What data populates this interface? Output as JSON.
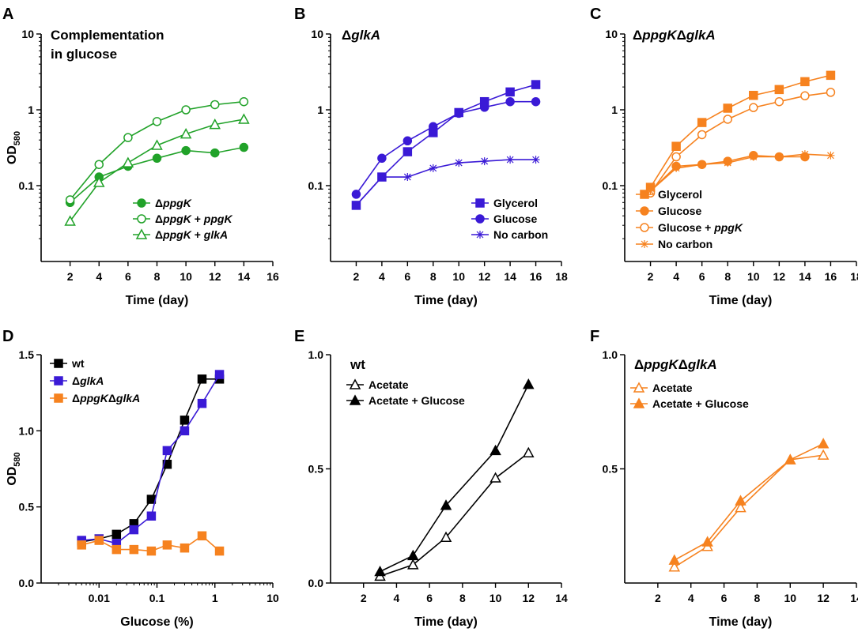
{
  "chart_data": [
    {
      "panel": "A",
      "type": "line",
      "title_lines": [
        "Complementation",
        " in glucose"
      ],
      "xlabel": "Time (day)",
      "ylabel": "OD",
      "ylabel_sub": "580",
      "yscale": "log",
      "xlim": [
        0,
        16
      ],
      "ylim": [
        0.01,
        10
      ],
      "xticks": [
        2,
        4,
        6,
        8,
        10,
        12,
        14,
        16
      ],
      "yticks": [
        0.1,
        1,
        10
      ],
      "ytick_labels": [
        "0.1",
        "1",
        "10"
      ],
      "legend_position": "bottom-right",
      "series": [
        {
          "name": [
            {
              "t": "Δ"
            },
            {
              "t": "ppgK",
              "i": true
            }
          ],
          "color": "#21a229",
          "marker": "circle",
          "filled": true,
          "x": [
            2,
            4,
            6,
            8,
            10,
            12,
            14
          ],
          "y": [
            0.06,
            0.13,
            0.18,
            0.23,
            0.29,
            0.27,
            0.32
          ]
        },
        {
          "name": [
            {
              "t": "Δ"
            },
            {
              "t": "ppgK",
              "i": true
            },
            {
              "t": " + "
            },
            {
              "t": "ppgK",
              "i": true
            }
          ],
          "color": "#21a229",
          "marker": "circle",
          "filled": false,
          "x": [
            2,
            4,
            6,
            8,
            10,
            12,
            14
          ],
          "y": [
            0.065,
            0.19,
            0.43,
            0.7,
            1.0,
            1.17,
            1.28
          ]
        },
        {
          "name": [
            {
              "t": "Δ"
            },
            {
              "t": "ppgK",
              "i": true
            },
            {
              "t": " + "
            },
            {
              "t": "glkA",
              "i": true
            }
          ],
          "color": "#21a229",
          "marker": "triangle",
          "filled": false,
          "x": [
            2,
            4,
            6,
            8,
            10,
            12,
            14
          ],
          "y": [
            0.034,
            0.11,
            0.2,
            0.34,
            0.48,
            0.64,
            0.75
          ]
        }
      ]
    },
    {
      "panel": "B",
      "type": "line",
      "title_lines": [
        "ΔglkA"
      ],
      "title_rich": [
        {
          "t": "Δ"
        },
        {
          "t": "glkA",
          "i": true
        }
      ],
      "xlabel": "Time (day)",
      "ylabel": "",
      "yscale": "log",
      "xlim": [
        0,
        18
      ],
      "ylim": [
        0.01,
        10
      ],
      "xticks": [
        2,
        4,
        6,
        8,
        10,
        12,
        14,
        16,
        18
      ],
      "yticks": [
        0.1,
        1,
        10
      ],
      "ytick_labels": [
        "0.1",
        "1",
        "10"
      ],
      "legend_position": "bottom-right",
      "series": [
        {
          "name": [
            {
              "t": "Glycerol"
            }
          ],
          "color": "#3a1ad6",
          "marker": "square",
          "filled": true,
          "x": [
            2,
            4,
            6,
            8,
            10,
            12,
            14,
            16
          ],
          "y": [
            0.055,
            0.13,
            0.28,
            0.5,
            0.92,
            1.28,
            1.72,
            2.15
          ]
        },
        {
          "name": [
            {
              "t": "Glucose"
            }
          ],
          "color": "#3a1ad6",
          "marker": "circle",
          "filled": true,
          "x": [
            2,
            4,
            6,
            8,
            10,
            12,
            14,
            16
          ],
          "y": [
            0.077,
            0.23,
            0.39,
            0.6,
            0.9,
            1.08,
            1.28,
            1.28
          ]
        },
        {
          "name": [
            {
              "t": "No carbon"
            }
          ],
          "color": "#3a1ad6",
          "marker": "star",
          "filled": false,
          "x": [
            2,
            4,
            6,
            8,
            10,
            12,
            14,
            16
          ],
          "y": [
            0.055,
            0.13,
            0.13,
            0.17,
            0.2,
            0.21,
            0.22,
            0.22
          ]
        }
      ]
    },
    {
      "panel": "C",
      "type": "line",
      "title_lines": [
        "ΔppgKΔglkA"
      ],
      "title_rich": [
        {
          "t": "Δ"
        },
        {
          "t": "ppgK",
          "i": true
        },
        {
          "t": "Δ"
        },
        {
          "t": "glkA",
          "i": true
        }
      ],
      "xlabel": "Time (day)",
      "ylabel": "",
      "yscale": "log",
      "xlim": [
        0,
        18
      ],
      "ylim": [
        0.01,
        10
      ],
      "xticks": [
        2,
        4,
        6,
        8,
        10,
        12,
        14,
        16,
        18
      ],
      "yticks": [
        0.1,
        1,
        10
      ],
      "ytick_labels": [
        "0.1",
        "1",
        "10"
      ],
      "legend_position": "bottom-right",
      "series": [
        {
          "name": [
            {
              "t": "Glycerol"
            }
          ],
          "color": "#f6821f",
          "marker": "square",
          "filled": true,
          "x": [
            2,
            4,
            6,
            8,
            10,
            12,
            14,
            16
          ],
          "y": [
            0.095,
            0.33,
            0.68,
            1.05,
            1.55,
            1.85,
            2.35,
            2.85
          ]
        },
        {
          "name": [
            {
              "t": "Glucose"
            }
          ],
          "color": "#f6821f",
          "marker": "circle",
          "filled": true,
          "x": [
            2,
            4,
            6,
            8,
            10,
            12,
            14
          ],
          "y": [
            0.085,
            0.18,
            0.19,
            0.21,
            0.25,
            0.24,
            0.24
          ]
        },
        {
          "name": [
            {
              "t": "Glucose + "
            },
            {
              "t": "ppgK",
              "i": true
            }
          ],
          "color": "#f6821f",
          "marker": "circle",
          "filled": false,
          "x": [
            2,
            4,
            6,
            8,
            10,
            12,
            14,
            16
          ],
          "y": [
            0.08,
            0.24,
            0.47,
            0.75,
            1.07,
            1.28,
            1.53,
            1.7
          ]
        },
        {
          "name": [
            {
              "t": "No carbon"
            }
          ],
          "color": "#f6821f",
          "marker": "star",
          "filled": false,
          "x": [
            2,
            4,
            6,
            8,
            10,
            12,
            14,
            16
          ],
          "y": [
            0.085,
            0.17,
            0.19,
            0.2,
            0.24,
            0.24,
            0.26,
            0.25
          ]
        }
      ]
    },
    {
      "panel": "D",
      "type": "line",
      "title_lines": [],
      "xlabel": "Glucose (%)",
      "ylabel": "OD",
      "ylabel_sub": "580",
      "xscale": "log",
      "xlim": [
        0.001,
        10
      ],
      "ylim": [
        0,
        1.5
      ],
      "xticks": [
        0.01,
        0.1,
        1,
        10
      ],
      "xtick_labels": [
        "0.01",
        "0.1",
        "1",
        "10"
      ],
      "yticks": [
        0,
        0.5,
        1,
        1.5
      ],
      "ytick_labels": [
        "0.0",
        "0.5",
        "1.0",
        "1.5"
      ],
      "legend_position": "top-left",
      "series": [
        {
          "name": [
            {
              "t": "wt"
            }
          ],
          "color": "#000000",
          "marker": "square",
          "filled": true,
          "x": [
            0.005,
            0.01,
            0.02,
            0.04,
            0.08,
            0.15,
            0.3,
            0.6,
            1.2
          ],
          "y": [
            0.27,
            0.29,
            0.32,
            0.39,
            0.55,
            0.78,
            1.07,
            1.34,
            1.34
          ]
        },
        {
          "name": [
            {
              "t": "Δ"
            },
            {
              "t": "glkA",
              "i": true
            }
          ],
          "color": "#3a1ad6",
          "marker": "square",
          "filled": true,
          "x": [
            0.005,
            0.01,
            0.02,
            0.04,
            0.08,
            0.15,
            0.3,
            0.6,
            1.2
          ],
          "y": [
            0.28,
            0.29,
            0.26,
            0.35,
            0.44,
            0.87,
            1.0,
            1.18,
            1.37
          ]
        },
        {
          "name": [
            {
              "t": "Δ"
            },
            {
              "t": "ppgK",
              "i": true
            },
            {
              "t": "Δ"
            },
            {
              "t": "glkA",
              "i": true
            }
          ],
          "color": "#f6821f",
          "marker": "square",
          "filled": true,
          "x": [
            0.005,
            0.01,
            0.02,
            0.04,
            0.08,
            0.15,
            0.3,
            0.6,
            1.2
          ],
          "y": [
            0.25,
            0.28,
            0.22,
            0.22,
            0.21,
            0.25,
            0.23,
            0.31,
            0.21
          ]
        }
      ]
    },
    {
      "panel": "E",
      "type": "line",
      "title_lines": [
        "wt"
      ],
      "xlabel": "Time (day)",
      "ylabel": "",
      "xlim": [
        0,
        14
      ],
      "ylim": [
        0,
        1
      ],
      "xticks": [
        2,
        4,
        6,
        8,
        10,
        12,
        14
      ],
      "yticks": [
        0,
        0.5,
        1
      ],
      "ytick_labels": [
        "0.0",
        "0.5",
        "1.0"
      ],
      "legend_position": "top-left",
      "series": [
        {
          "name": [
            {
              "t": "Acetate"
            }
          ],
          "color": "#000000",
          "marker": "triangle",
          "filled": false,
          "x": [
            3,
            5,
            7,
            10,
            12
          ],
          "y": [
            0.03,
            0.08,
            0.2,
            0.46,
            0.57
          ]
        },
        {
          "name": [
            {
              "t": "Acetate + Glucose"
            }
          ],
          "color": "#000000",
          "marker": "triangle",
          "filled": true,
          "x": [
            3,
            5,
            7,
            10,
            12
          ],
          "y": [
            0.05,
            0.12,
            0.34,
            0.58,
            0.87
          ]
        }
      ]
    },
    {
      "panel": "F",
      "type": "line",
      "title_lines": [
        "ΔppgKΔglkA"
      ],
      "title_rich": [
        {
          "t": "Δ"
        },
        {
          "t": "ppgK",
          "i": true
        },
        {
          "t": "Δ"
        },
        {
          "t": "glkA",
          "i": true
        }
      ],
      "xlabel": "Time (day)",
      "ylabel": "",
      "xlim": [
        0,
        14
      ],
      "ylim": [
        0,
        1
      ],
      "xticks": [
        2,
        4,
        6,
        8,
        10,
        12,
        14
      ],
      "yticks": [
        0.5,
        1
      ],
      "ytick_labels": [
        "0.5",
        "1.0"
      ],
      "legend_position": "top-left",
      "series": [
        {
          "name": [
            {
              "t": "Acetate"
            }
          ],
          "color": "#f6821f",
          "marker": "triangle",
          "filled": false,
          "x": [
            3,
            5,
            7,
            10,
            12
          ],
          "y": [
            0.07,
            0.16,
            0.33,
            0.54,
            0.56
          ]
        },
        {
          "name": [
            {
              "t": "Acetate + Glucose"
            }
          ],
          "color": "#f6821f",
          "marker": "triangle",
          "filled": true,
          "x": [
            3,
            5,
            7,
            10,
            12
          ],
          "y": [
            0.1,
            0.18,
            0.36,
            0.54,
            0.61
          ]
        }
      ]
    }
  ]
}
